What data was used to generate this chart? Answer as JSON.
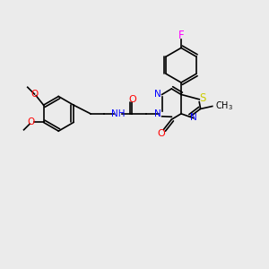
{
  "background_color": "#ebebeb",
  "bond_color": "#000000",
  "atom_colors": {
    "N": "#0000ff",
    "O": "#ff0000",
    "S": "#cccc00",
    "F": "#ff00ff",
    "H": "#000000",
    "C": "#000000"
  },
  "font_size": 7.5,
  "lw": 1.2
}
